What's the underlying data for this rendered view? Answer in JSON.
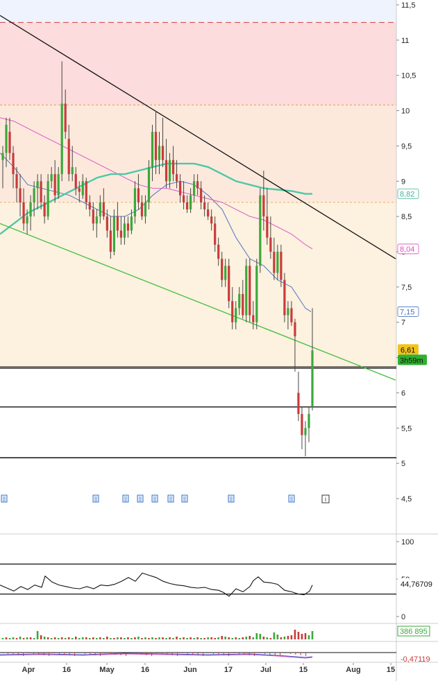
{
  "chart_data": {
    "type": "candlestick",
    "y_ticks": [
      "11,5",
      "11",
      "10,5",
      "10",
      "9,5",
      "9",
      "8,5",
      "8",
      "7,5",
      "7",
      "6,5",
      "6",
      "5,5",
      "5",
      "4,5"
    ],
    "ylim": [
      4.2,
      11.55
    ],
    "x_ticks": [
      "Apr",
      "16",
      "May",
      "16",
      "Jun",
      "17",
      "Jul",
      "15",
      "Aug",
      "15"
    ],
    "zones": [
      {
        "from": 11.25,
        "to": 11.55,
        "color": "#eef3fd"
      },
      {
        "from": 10.08,
        "to": 11.25,
        "color": "#fcdcdc"
      },
      {
        "from": 8.7,
        "to": 10.08,
        "color": "#fde9dc"
      },
      {
        "from": 6.35,
        "to": 8.7,
        "color": "#fdf1df"
      }
    ],
    "levels": [
      {
        "value": 11.25,
        "style": "dash",
        "color": "#d93a3a"
      },
      {
        "value": 10.08,
        "style": "dot",
        "color": "#e39a4a"
      },
      {
        "value": 8.7,
        "style": "dot",
        "color": "#e3b26a"
      },
      {
        "value": 6.35,
        "style": "solid",
        "color": "#111111"
      },
      {
        "value": 5.8,
        "style": "solid",
        "color": "#111111"
      },
      {
        "value": 5.08,
        "style": "solid",
        "color": "#111111"
      }
    ],
    "trendlines": [
      {
        "name": "resistance",
        "color": "#111111",
        "from": [
          0,
          11.35
        ],
        "to": [
          570,
          7.9
        ]
      },
      {
        "name": "support",
        "color": "#3dbf3d",
        "from": [
          0,
          8.4
        ],
        "to": [
          570,
          6.18
        ]
      }
    ],
    "candles": [
      {
        "o": 9.3,
        "h": 9.5,
        "l": 8.9,
        "c": 9.4
      },
      {
        "o": 9.4,
        "h": 9.9,
        "l": 9.2,
        "c": 9.8
      },
      {
        "o": 9.7,
        "h": 9.9,
        "l": 9.3,
        "c": 9.4
      },
      {
        "o": 9.4,
        "h": 9.5,
        "l": 8.9,
        "c": 9.1
      },
      {
        "o": 9.1,
        "h": 9.2,
        "l": 8.7,
        "c": 8.9
      },
      {
        "o": 8.9,
        "h": 9.1,
        "l": 8.5,
        "c": 8.7
      },
      {
        "o": 8.7,
        "h": 8.9,
        "l": 8.3,
        "c": 8.4
      },
      {
        "o": 8.4,
        "h": 8.6,
        "l": 8.25,
        "c": 8.5
      },
      {
        "o": 8.5,
        "h": 8.8,
        "l": 8.3,
        "c": 8.7
      },
      {
        "o": 8.7,
        "h": 9.0,
        "l": 8.5,
        "c": 8.9
      },
      {
        "o": 8.9,
        "h": 9.1,
        "l": 8.6,
        "c": 9.0
      },
      {
        "o": 9.0,
        "h": 9.1,
        "l": 8.6,
        "c": 8.7
      },
      {
        "o": 8.7,
        "h": 8.8,
        "l": 8.4,
        "c": 8.5
      },
      {
        "o": 8.5,
        "h": 9.1,
        "l": 8.45,
        "c": 9.0
      },
      {
        "o": 9.0,
        "h": 9.2,
        "l": 8.9,
        "c": 9.1
      },
      {
        "o": 9.1,
        "h": 9.3,
        "l": 8.7,
        "c": 8.8
      },
      {
        "o": 8.8,
        "h": 9.2,
        "l": 8.75,
        "c": 9.1
      },
      {
        "o": 9.1,
        "h": 10.7,
        "l": 9.0,
        "c": 10.1
      },
      {
        "o": 10.1,
        "h": 10.3,
        "l": 9.6,
        "c": 9.7
      },
      {
        "o": 9.6,
        "h": 9.8,
        "l": 9.0,
        "c": 9.1
      },
      {
        "o": 9.1,
        "h": 9.5,
        "l": 9.0,
        "c": 9.2
      },
      {
        "o": 9.1,
        "h": 9.2,
        "l": 8.8,
        "c": 8.9
      },
      {
        "o": 8.9,
        "h": 9.0,
        "l": 8.7,
        "c": 8.85
      },
      {
        "o": 8.8,
        "h": 9.1,
        "l": 8.75,
        "c": 9.0
      },
      {
        "o": 9.0,
        "h": 9.05,
        "l": 8.6,
        "c": 8.7
      },
      {
        "o": 8.7,
        "h": 8.8,
        "l": 8.5,
        "c": 8.6
      },
      {
        "o": 8.6,
        "h": 8.7,
        "l": 8.3,
        "c": 8.4
      },
      {
        "o": 8.4,
        "h": 8.6,
        "l": 8.2,
        "c": 8.5
      },
      {
        "o": 8.5,
        "h": 8.8,
        "l": 8.4,
        "c": 8.7
      },
      {
        "o": 8.7,
        "h": 8.9,
        "l": 8.45,
        "c": 8.5
      },
      {
        "o": 8.5,
        "h": 8.6,
        "l": 8.2,
        "c": 8.3
      },
      {
        "o": 8.3,
        "h": 8.5,
        "l": 7.9,
        "c": 8.0
      },
      {
        "o": 8.0,
        "h": 8.6,
        "l": 7.95,
        "c": 8.5
      },
      {
        "o": 8.5,
        "h": 8.7,
        "l": 8.2,
        "c": 8.3
      },
      {
        "o": 8.3,
        "h": 8.5,
        "l": 8.1,
        "c": 8.2
      },
      {
        "o": 8.2,
        "h": 8.5,
        "l": 8.1,
        "c": 8.4
      },
      {
        "o": 8.4,
        "h": 8.5,
        "l": 8.2,
        "c": 8.3
      },
      {
        "o": 8.3,
        "h": 8.6,
        "l": 8.25,
        "c": 8.5
      },
      {
        "o": 8.5,
        "h": 9.0,
        "l": 8.4,
        "c": 8.9
      },
      {
        "o": 8.9,
        "h": 9.1,
        "l": 8.6,
        "c": 8.7
      },
      {
        "o": 8.7,
        "h": 8.8,
        "l": 8.45,
        "c": 8.5
      },
      {
        "o": 8.5,
        "h": 8.8,
        "l": 8.4,
        "c": 8.7
      },
      {
        "o": 8.7,
        "h": 9.3,
        "l": 8.6,
        "c": 9.2
      },
      {
        "o": 9.2,
        "h": 9.8,
        "l": 9.0,
        "c": 9.7
      },
      {
        "o": 9.7,
        "h": 10.0,
        "l": 9.1,
        "c": 9.3
      },
      {
        "o": 9.3,
        "h": 9.7,
        "l": 9.1,
        "c": 9.5
      },
      {
        "o": 9.5,
        "h": 9.9,
        "l": 9.2,
        "c": 9.3
      },
      {
        "o": 9.3,
        "h": 9.6,
        "l": 8.9,
        "c": 9.0
      },
      {
        "o": 9.0,
        "h": 9.4,
        "l": 8.9,
        "c": 9.3
      },
      {
        "o": 9.3,
        "h": 9.5,
        "l": 9.0,
        "c": 9.1
      },
      {
        "o": 9.1,
        "h": 9.3,
        "l": 8.9,
        "c": 9.0
      },
      {
        "o": 9.0,
        "h": 9.1,
        "l": 8.7,
        "c": 8.8
      },
      {
        "o": 8.8,
        "h": 9.0,
        "l": 8.6,
        "c": 8.7
      },
      {
        "o": 8.7,
        "h": 8.8,
        "l": 8.55,
        "c": 8.6
      },
      {
        "o": 8.6,
        "h": 8.9,
        "l": 8.55,
        "c": 8.8
      },
      {
        "o": 8.8,
        "h": 9.1,
        "l": 8.7,
        "c": 9.0
      },
      {
        "o": 9.0,
        "h": 9.1,
        "l": 8.8,
        "c": 8.9
      },
      {
        "o": 8.9,
        "h": 9.0,
        "l": 8.6,
        "c": 8.7
      },
      {
        "o": 8.7,
        "h": 8.8,
        "l": 8.5,
        "c": 8.6
      },
      {
        "o": 8.6,
        "h": 8.7,
        "l": 8.45,
        "c": 8.5
      },
      {
        "o": 8.5,
        "h": 8.6,
        "l": 8.3,
        "c": 8.4
      },
      {
        "o": 8.4,
        "h": 8.5,
        "l": 8.0,
        "c": 8.1
      },
      {
        "o": 8.1,
        "h": 8.2,
        "l": 7.8,
        "c": 7.9
      },
      {
        "o": 7.9,
        "h": 8.0,
        "l": 7.5,
        "c": 7.6
      },
      {
        "o": 7.6,
        "h": 7.9,
        "l": 7.5,
        "c": 7.8
      },
      {
        "o": 7.8,
        "h": 7.9,
        "l": 7.2,
        "c": 7.3
      },
      {
        "o": 7.3,
        "h": 7.5,
        "l": 6.9,
        "c": 7.0
      },
      {
        "o": 7.0,
        "h": 7.3,
        "l": 6.9,
        "c": 7.2
      },
      {
        "o": 7.2,
        "h": 7.5,
        "l": 7.1,
        "c": 7.4
      },
      {
        "o": 7.4,
        "h": 7.6,
        "l": 7.05,
        "c": 7.1
      },
      {
        "o": 7.1,
        "h": 7.9,
        "l": 7.0,
        "c": 7.8
      },
      {
        "o": 7.8,
        "h": 7.9,
        "l": 7.0,
        "c": 7.1
      },
      {
        "o": 7.1,
        "h": 7.3,
        "l": 6.9,
        "c": 7.0
      },
      {
        "o": 7.0,
        "h": 7.9,
        "l": 6.9,
        "c": 7.8
      },
      {
        "o": 7.8,
        "h": 8.9,
        "l": 7.7,
        "c": 8.8
      },
      {
        "o": 8.8,
        "h": 9.15,
        "l": 8.3,
        "c": 8.5
      },
      {
        "o": 8.5,
        "h": 8.9,
        "l": 8.1,
        "c": 8.2
      },
      {
        "o": 8.2,
        "h": 8.5,
        "l": 7.9,
        "c": 8.0
      },
      {
        "o": 8.0,
        "h": 8.2,
        "l": 7.6,
        "c": 7.7
      },
      {
        "o": 7.7,
        "h": 8.1,
        "l": 7.6,
        "c": 8.0
      },
      {
        "o": 8.0,
        "h": 8.1,
        "l": 7.5,
        "c": 7.6
      },
      {
        "o": 7.6,
        "h": 7.7,
        "l": 7.0,
        "c": 7.1
      },
      {
        "o": 7.1,
        "h": 7.3,
        "l": 6.9,
        "c": 7.2
      },
      {
        "o": 7.2,
        "h": 7.3,
        "l": 6.95,
        "c": 7.0
      },
      {
        "o": 7.0,
        "h": 7.05,
        "l": 6.3,
        "c": 6.8
      },
      {
        "o": 6.0,
        "h": 6.3,
        "l": 5.6,
        "c": 5.7
      },
      {
        "o": 5.7,
        "h": 5.8,
        "l": 5.2,
        "c": 5.4
      },
      {
        "o": 5.4,
        "h": 5.6,
        "l": 5.1,
        "c": 5.5
      },
      {
        "o": 5.5,
        "h": 5.8,
        "l": 5.3,
        "c": 5.7
      },
      {
        "o": 5.8,
        "h": 7.2,
        "l": 5.75,
        "c": 6.6
      }
    ],
    "moving_averages": [
      {
        "name": "ma-blue",
        "color": "#5d7fc6",
        "values": [
          [
            0,
            9.4
          ],
          [
            20,
            9.2
          ],
          [
            40,
            8.95
          ],
          [
            60,
            8.9
          ],
          [
            80,
            8.85
          ],
          [
            100,
            8.8
          ],
          [
            120,
            8.7
          ],
          [
            140,
            8.6
          ],
          [
            160,
            8.5
          ],
          [
            180,
            8.5
          ],
          [
            200,
            8.6
          ],
          [
            220,
            8.8
          ],
          [
            240,
            8.95
          ],
          [
            260,
            9.0
          ],
          [
            280,
            8.95
          ],
          [
            300,
            8.8
          ],
          [
            320,
            8.6
          ],
          [
            340,
            8.2
          ],
          [
            360,
            7.9
          ],
          [
            380,
            7.8
          ],
          [
            400,
            7.6
          ],
          [
            420,
            7.5
          ],
          [
            440,
            7.2
          ],
          [
            448,
            7.15
          ]
        ]
      },
      {
        "name": "ma-pink",
        "color": "#dd66cc",
        "values": [
          [
            0,
            9.9
          ],
          [
            20,
            9.85
          ],
          [
            40,
            9.75
          ],
          [
            60,
            9.65
          ],
          [
            80,
            9.55
          ],
          [
            100,
            9.45
          ],
          [
            120,
            9.35
          ],
          [
            140,
            9.25
          ],
          [
            160,
            9.15
          ],
          [
            180,
            9.05
          ],
          [
            200,
            8.95
          ],
          [
            220,
            8.9
          ],
          [
            240,
            8.9
          ],
          [
            260,
            8.85
          ],
          [
            280,
            8.8
          ],
          [
            300,
            8.75
          ],
          [
            320,
            8.7
          ],
          [
            340,
            8.6
          ],
          [
            360,
            8.5
          ],
          [
            380,
            8.45
          ],
          [
            400,
            8.35
          ],
          [
            420,
            8.25
          ],
          [
            440,
            8.1
          ],
          [
            450,
            8.04
          ]
        ]
      },
      {
        "name": "ma-teal",
        "color": "#4cc8a8",
        "values": [
          [
            0,
            8.25
          ],
          [
            20,
            8.4
          ],
          [
            40,
            8.55
          ],
          [
            60,
            8.65
          ],
          [
            80,
            8.75
          ],
          [
            100,
            8.85
          ],
          [
            120,
            8.95
          ],
          [
            140,
            9.05
          ],
          [
            160,
            9.1
          ],
          [
            180,
            9.1
          ],
          [
            200,
            9.15
          ],
          [
            220,
            9.2
          ],
          [
            240,
            9.25
          ],
          [
            260,
            9.25
          ],
          [
            280,
            9.25
          ],
          [
            300,
            9.2
          ],
          [
            320,
            9.1
          ],
          [
            340,
            9.0
          ],
          [
            360,
            8.95
          ],
          [
            380,
            8.9
          ],
          [
            400,
            8.88
          ],
          [
            420,
            8.86
          ],
          [
            440,
            8.82
          ],
          [
            450,
            8.82
          ]
        ]
      }
    ],
    "last_price": {
      "value": 6.61,
      "label": "6,61",
      "timer": "3h59m"
    },
    "ma_labels": [
      {
        "label": "8,82",
        "color": "#3fb398",
        "value": 8.82
      },
      {
        "label": "8,04",
        "color": "#d94fbf",
        "value": 8.04
      },
      {
        "label": "7,15",
        "color": "#4a72bf",
        "value": 7.15
      }
    ],
    "news_icon_x_positions": [
      6,
      138,
      181,
      202,
      223,
      246,
      266,
      333,
      420
    ],
    "info_icon_x": 469,
    "rsi": {
      "ticks": [
        "100",
        "50",
        "0"
      ],
      "band_levels": [
        70,
        30
      ],
      "value_label": "44,76709",
      "values": [
        [
          0,
          42
        ],
        [
          10,
          38
        ],
        [
          20,
          34
        ],
        [
          30,
          40
        ],
        [
          40,
          36
        ],
        [
          50,
          42
        ],
        [
          60,
          39
        ],
        [
          65,
          54
        ],
        [
          75,
          46
        ],
        [
          85,
          42
        ],
        [
          95,
          40
        ],
        [
          105,
          38
        ],
        [
          115,
          37
        ],
        [
          125,
          40
        ],
        [
          135,
          37
        ],
        [
          145,
          42
        ],
        [
          155,
          41
        ],
        [
          165,
          43
        ],
        [
          175,
          47
        ],
        [
          185,
          52
        ],
        [
          195,
          47
        ],
        [
          205,
          58
        ],
        [
          215,
          55
        ],
        [
          225,
          52
        ],
        [
          235,
          47
        ],
        [
          245,
          44
        ],
        [
          255,
          42
        ],
        [
          265,
          41
        ],
        [
          275,
          39
        ],
        [
          285,
          38
        ],
        [
          295,
          39
        ],
        [
          305,
          36
        ],
        [
          315,
          35
        ],
        [
          322,
          32
        ],
        [
          330,
          27
        ],
        [
          340,
          37
        ],
        [
          350,
          33
        ],
        [
          360,
          40
        ],
        [
          365,
          48
        ],
        [
          372,
          53
        ],
        [
          380,
          46
        ],
        [
          390,
          45
        ],
        [
          400,
          43
        ],
        [
          410,
          35
        ],
        [
          420,
          33
        ],
        [
          430,
          30
        ],
        [
          438,
          29
        ],
        [
          446,
          34
        ],
        [
          450,
          42
        ]
      ]
    },
    "volume": {
      "value_label": "386 895",
      "bars": [
        2,
        3,
        2,
        3,
        2,
        4,
        2,
        3,
        3,
        2,
        12,
        6,
        4,
        3,
        2,
        3,
        2,
        3,
        2,
        3,
        2,
        4,
        2,
        3,
        3,
        2,
        3,
        2,
        3,
        2,
        4,
        2,
        2,
        3,
        3,
        2,
        3,
        2,
        3,
        4,
        2,
        3,
        2,
        3,
        2,
        3,
        3,
        2,
        3,
        2,
        4,
        2,
        3,
        2,
        3,
        2,
        3,
        2,
        2,
        3,
        3,
        2,
        3,
        5,
        4,
        3,
        2,
        3,
        2,
        3,
        4,
        5,
        3,
        9,
        8,
        4,
        3,
        2,
        10,
        7,
        3,
        4,
        5,
        6,
        14,
        11,
        8,
        9,
        6,
        12
      ],
      "colors": [
        "g",
        "r",
        "g",
        "g",
        "r",
        "g",
        "r",
        "g",
        "r",
        "g",
        "g",
        "r",
        "g",
        "r",
        "g",
        "r",
        "g",
        "r",
        "g",
        "r",
        "g",
        "r",
        "g",
        "g",
        "r",
        "g",
        "r",
        "g",
        "r",
        "g",
        "r",
        "g",
        "r",
        "g",
        "r",
        "g",
        "r",
        "g",
        "r",
        "g",
        "r",
        "g",
        "r",
        "g",
        "r",
        "g",
        "r",
        "g",
        "r",
        "g",
        "r",
        "g",
        "r",
        "g",
        "r",
        "g",
        "r",
        "g",
        "r",
        "g",
        "r",
        "r",
        "g",
        "r",
        "g",
        "r",
        "g",
        "r",
        "g",
        "r",
        "g",
        "r",
        "g",
        "g",
        "g",
        "r",
        "g",
        "r",
        "g",
        "g",
        "r",
        "g",
        "r",
        "r",
        "r",
        "r",
        "r",
        "r",
        "g",
        "g"
      ]
    },
    "macd": {
      "value_label": "-0,47119"
    }
  }
}
